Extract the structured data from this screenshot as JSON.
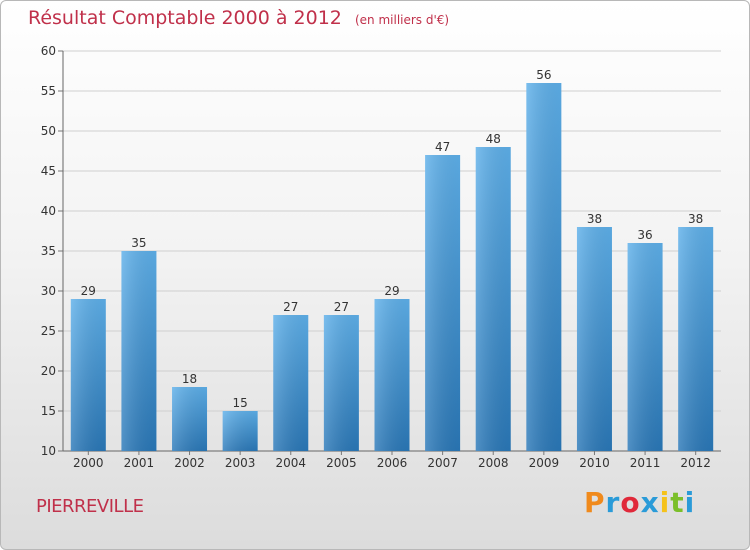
{
  "chart_data": {
    "type": "bar",
    "title": "Résultat Comptable 2000 à 2012",
    "subtitle": "(en milliers d'€)",
    "categories": [
      "2000",
      "2001",
      "2002",
      "2003",
      "2004",
      "2005",
      "2006",
      "2007",
      "2008",
      "2009",
      "2010",
      "2011",
      "2012"
    ],
    "values": [
      29,
      35,
      18,
      15,
      27,
      27,
      29,
      47,
      48,
      56,
      38,
      36,
      38
    ],
    "ylim": [
      10,
      60
    ],
    "yticks": [
      10,
      15,
      20,
      25,
      30,
      35,
      40,
      45,
      50,
      55,
      60
    ],
    "xlabel": "",
    "ylabel": "",
    "grid": true,
    "bar_color": "#4a9ad8"
  },
  "footer": {
    "municipality": "PIERREVILLE",
    "logo_text": "Proxiti",
    "logo_colors": [
      "#f08a1c",
      "#2a9bd8",
      "#e0293a",
      "#2a9bd8",
      "#f5c21b",
      "#7bbf2a",
      "#2a9bd8"
    ]
  }
}
